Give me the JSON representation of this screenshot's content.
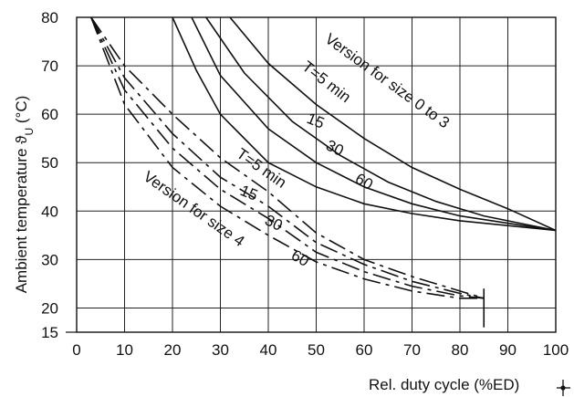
{
  "chart_data": {
    "type": "line",
    "xlabel": "Rel. duty cycle (%ED)",
    "ylabel": "Ambient temperature ϑU (°C)",
    "ylabel_main": "Ambient temperature ϑ",
    "ylabel_sub": "U",
    "ylabel_unit": " (°C)",
    "xlim": [
      0,
      100
    ],
    "ylim": [
      15,
      80
    ],
    "x_ticks": [
      "0",
      "10",
      "20",
      "30",
      "40",
      "50",
      "60",
      "70",
      "80",
      "90",
      "100"
    ],
    "y_ticks": [
      "15",
      "20",
      "30",
      "40",
      "50",
      "60",
      "70",
      "80"
    ],
    "grid": true,
    "groups": [
      {
        "label": "Version for size 0 to 3",
        "line_style": "solid",
        "series": [
          {
            "name": "T=5 min",
            "x": [
              32,
              40,
              50,
              60,
              70,
              80,
              90,
              100
            ],
            "y": [
              80,
              70.5,
              62,
              55,
              49,
              44.5,
              40.5,
              36
            ]
          },
          {
            "name": "15",
            "x": [
              27,
              35,
              45,
              55,
              65,
              75,
              85,
              100
            ],
            "y": [
              80,
              68.5,
              58.5,
              51.5,
              46,
              42,
              39,
              36
            ]
          },
          {
            "name": "30",
            "x": [
              24,
              30,
              40,
              50,
              60,
              70,
              80,
              90,
              100
            ],
            "y": [
              80,
              68,
              57,
              50,
              45,
              41.5,
              39,
              37.5,
              36
            ]
          },
          {
            "name": "60",
            "x": [
              20,
              25,
              30,
              40,
              50,
              60,
              70,
              80,
              90,
              100
            ],
            "y": [
              80,
              69,
              60,
              50,
              45,
              41.5,
              39.5,
              38,
              37,
              36
            ]
          }
        ]
      },
      {
        "label": "Version for size 4",
        "line_style": "dashed",
        "series": [
          {
            "name": "T=5 min",
            "x": [
              3,
              10,
              20,
              30,
              40,
              50,
              60,
              70,
              80,
              85
            ],
            "y": [
              80,
              70,
              60,
              51,
              44,
              35.5,
              30,
              26.5,
              23.5,
              22
            ]
          },
          {
            "name": "15",
            "x": [
              3,
              10,
              20,
              30,
              40,
              50,
              60,
              70,
              80,
              85
            ],
            "y": [
              80,
              67.5,
              56,
              47,
              41,
              33.5,
              29,
              25.5,
              23,
              22
            ]
          },
          {
            "name": "30",
            "x": [
              3,
              10,
              20,
              30,
              40,
              50,
              60,
              70,
              80,
              85
            ],
            "y": [
              80,
              65,
              53,
              44.5,
              38.5,
              31.5,
              27.5,
              24.5,
              22.5,
              22
            ]
          },
          {
            "name": "60",
            "x": [
              3,
              10,
              20,
              30,
              40,
              50,
              60,
              70,
              80,
              85
            ],
            "y": [
              80,
              62,
              49,
              41,
              35,
              29.5,
              26,
              23.5,
              22,
              22
            ]
          }
        ]
      }
    ]
  }
}
